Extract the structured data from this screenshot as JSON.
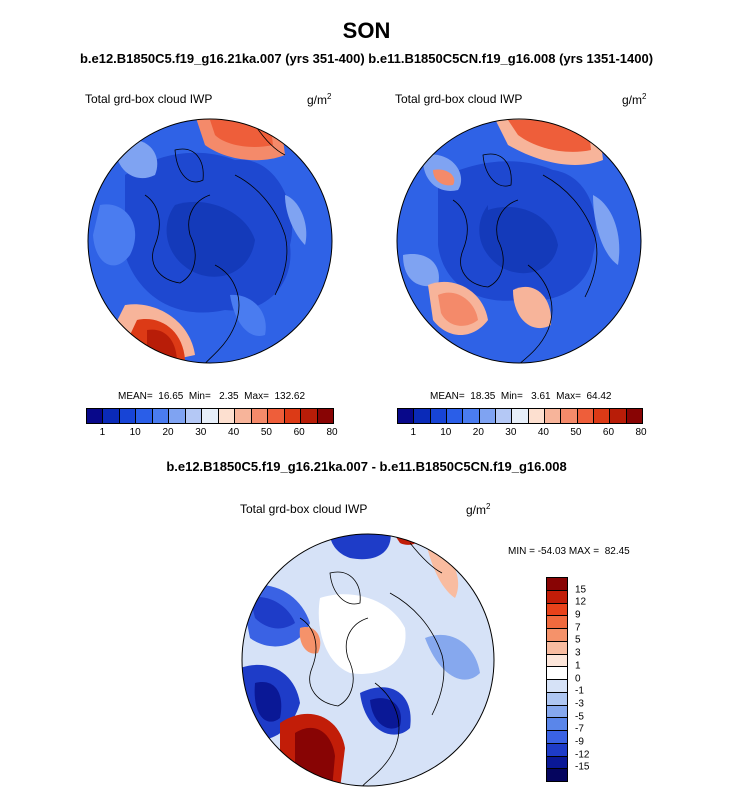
{
  "season": "SON",
  "runs_title": "b.e12.B1850C5.f19_g16.21ka.007 (yrs 351-400) b.e11.B1850C5CN.f19_g16.008 (yrs 1351-1400)",
  "diff_title": "b.e12.B1850C5.f19_g16.21ka.007 - b.e11.B1850C5CN.f19_g16.008",
  "variable": "Total grd-box cloud IWP",
  "units_base": "g/m",
  "units_exp": "2",
  "panel_left": {
    "stats": "MEAN=  16.65  Min=   2.35  Max=  132.62"
  },
  "panel_right": {
    "stats": "MEAN=  18.35  Min=   3.61  Max=  64.42"
  },
  "panel_diff": {
    "stats": "MIN = -54.03 MAX =  82.45"
  },
  "abs_colorbar": {
    "colors": [
      "#08088a",
      "#0a2ab8",
      "#1744d6",
      "#2a5ee8",
      "#4a7cf0",
      "#7fa3f2",
      "#b4c8f5",
      "#e6eef9",
      "#fde0d0",
      "#f7b49a",
      "#f48a6a",
      "#ee5e3a",
      "#dc3a16",
      "#b81d08",
      "#880404"
    ],
    "labels": [
      "1",
      "10",
      "20",
      "30",
      "40",
      "50",
      "60",
      "80"
    ]
  },
  "diff_colorbar": {
    "colors": [
      "#880404",
      "#c21d08",
      "#e8421a",
      "#f06a3e",
      "#f5926a",
      "#f9bca0",
      "#fde6da",
      "#ffffff",
      "#d6e2f7",
      "#aec6f2",
      "#86a8ee",
      "#5a86ea",
      "#3a62e4",
      "#1e3cc8",
      "#0a1896",
      "#05055e"
    ],
    "labels": [
      "15",
      "12",
      "9",
      "7",
      "5",
      "3",
      "1",
      "0",
      "-1",
      "-3",
      "-5",
      "-7",
      "-9",
      "-12",
      "-15"
    ]
  }
}
